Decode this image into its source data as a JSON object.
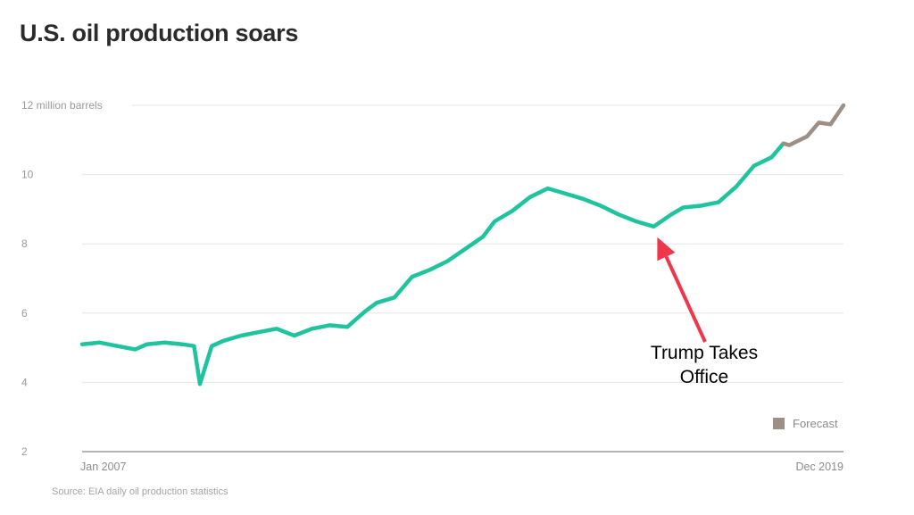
{
  "chart_data": {
    "type": "line",
    "title": "U.S. oil production soars",
    "ylabel": "12 million barrels",
    "ylim": [
      2,
      12
    ],
    "y_ticks": [
      {
        "value": 12,
        "label": "12 million barrels"
      },
      {
        "value": 10,
        "label": "10"
      },
      {
        "value": 8,
        "label": "8"
      },
      {
        "value": 6,
        "label": "6"
      },
      {
        "value": 4,
        "label": "4"
      },
      {
        "value": 2,
        "label": "2"
      }
    ],
    "xlim": [
      2007.0,
      2019.92
    ],
    "x_labels": {
      "start": "Jan 2007",
      "end": "Dec 2019"
    },
    "series": [
      {
        "name": "Actual",
        "color": "#1fc49e",
        "x": [
          2007.0,
          2007.3,
          2007.6,
          2007.9,
          2008.1,
          2008.4,
          2008.7,
          2008.9,
          2009.0,
          2009.2,
          2009.4,
          2009.7,
          2010.0,
          2010.3,
          2010.6,
          2010.9,
          2011.2,
          2011.5,
          2011.8,
          2012.0,
          2012.3,
          2012.6,
          2012.9,
          2013.2,
          2013.5,
          2013.8,
          2014.0,
          2014.3,
          2014.6,
          2014.9,
          2015.2,
          2015.5,
          2015.8,
          2016.1,
          2016.4,
          2016.7,
          2017.0,
          2017.2,
          2017.5,
          2017.8,
          2018.1,
          2018.4,
          2018.7,
          2018.9,
          2019.0,
          2019.3,
          2019.5,
          2019.7,
          2019.92
        ],
        "y": [
          5.1,
          5.15,
          5.05,
          4.95,
          5.1,
          5.15,
          5.1,
          5.05,
          3.95,
          5.05,
          5.2,
          5.35,
          5.45,
          5.55,
          5.35,
          5.55,
          5.65,
          5.6,
          6.05,
          6.3,
          6.45,
          7.05,
          7.25,
          7.5,
          7.85,
          8.2,
          8.65,
          8.95,
          9.35,
          9.6,
          9.45,
          9.3,
          9.1,
          8.85,
          8.65,
          8.5,
          8.85,
          9.05,
          9.1,
          9.2,
          9.65,
          10.25,
          10.5,
          10.9,
          10.85,
          11.1,
          11.5,
          11.45,
          12.0
        ]
      }
    ],
    "split_x": 2018.9,
    "actual_color": "#1fc49e",
    "forecast_color": "#9c8f85",
    "legend": {
      "label": "Forecast",
      "color": "#9c8f85",
      "position": "bottom-right"
    },
    "annotation": {
      "lines": [
        "Trump Takes",
        "Office"
      ],
      "target": {
        "x": 2016.7,
        "y": 8.5
      },
      "arrow_color": "#f0364a"
    }
  },
  "source": "Source: EIA daily oil production statistics"
}
